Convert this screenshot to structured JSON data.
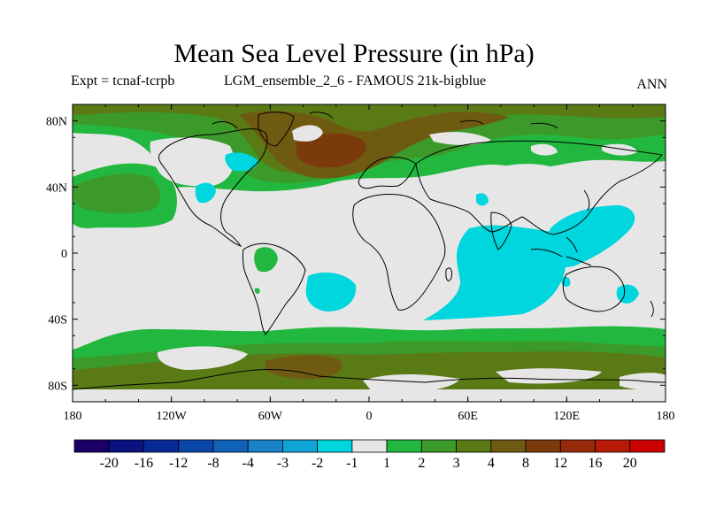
{
  "title": "Mean Sea Level Pressure (in hPa)",
  "subtitle_left": "Expt = tcnaf-tcrpb",
  "subtitle_center": "LGM_ensemble_2_6 - FAMOUS 21k-bigblue",
  "season": "ANN",
  "chart_data": {
    "type": "heatmap",
    "title": "Mean Sea Level Pressure (in hPa)",
    "xlim": [
      -180,
      180
    ],
    "ylim": [
      -90,
      90
    ],
    "x_ticks": [
      {
        "value": -180,
        "label": "180"
      },
      {
        "value": -120,
        "label": "120W"
      },
      {
        "value": -60,
        "label": "60W"
      },
      {
        "value": 0,
        "label": "0"
      },
      {
        "value": 60,
        "label": "60E"
      },
      {
        "value": 120,
        "label": "120E"
      },
      {
        "value": 180,
        "label": "180"
      }
    ],
    "y_ticks": [
      {
        "value": 80,
        "label": "80N"
      },
      {
        "value": 40,
        "label": "40N"
      },
      {
        "value": 0,
        "label": "0"
      },
      {
        "value": -40,
        "label": "40S"
      },
      {
        "value": -80,
        "label": "80S"
      }
    ],
    "colorbar": {
      "levels": [
        -20,
        -16,
        -12,
        -8,
        -4,
        -3,
        -2,
        -1,
        1,
        2,
        3,
        4,
        8,
        12,
        16,
        20
      ],
      "labels": [
        "-20",
        "-16",
        "-12",
        "-8",
        "-4",
        "-3",
        "-2",
        "-1",
        "1",
        "2",
        "3",
        "4",
        "8",
        "12",
        "16",
        "20"
      ],
      "colors": [
        "#1a0066",
        "#0a1280",
        "#082a96",
        "#0a45a8",
        "#0f62b8",
        "#1a82c8",
        "#0fa5d6",
        "#00d6dd",
        "#e6e6e6",
        "#22b840",
        "#3c9a2a",
        "#5a7a16",
        "#6e5a10",
        "#7a3a0c",
        "#962a0a",
        "#b81a08",
        "#cc0000"
      ]
    }
  }
}
